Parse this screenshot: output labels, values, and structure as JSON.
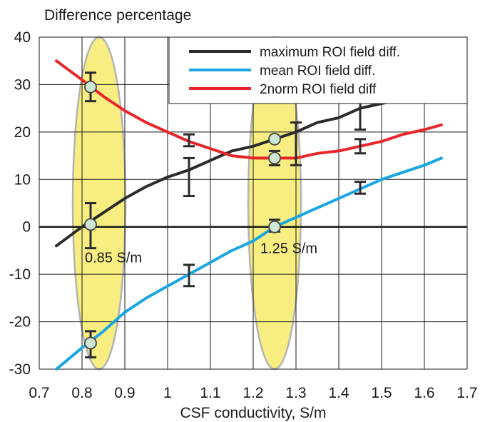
{
  "chart_data": {
    "type": "line",
    "title": "",
    "ylabel": "Difference percentage",
    "xlabel": "CSF conductivity, S/m",
    "xlim": [
      0.7,
      1.7
    ],
    "ylim": [
      -30,
      40
    ],
    "x_ticks": [
      "0.7",
      "0.8",
      "0.9",
      "1",
      "1.1",
      "1.2",
      "1.3",
      "1.4",
      "1.5",
      "1.6",
      "1.7"
    ],
    "y_ticks": [
      "40",
      "30",
      "20",
      "10",
      "0",
      "-10",
      "-20",
      "-30"
    ],
    "grid": true,
    "legend_position": "top-right",
    "series": [
      {
        "name": "maximum ROI field diff.",
        "color": "#2b2b2b",
        "x": [
          0.74,
          0.8,
          0.85,
          0.9,
          0.95,
          1.0,
          1.05,
          1.1,
          1.15,
          1.2,
          1.25,
          1.3,
          1.35,
          1.4,
          1.45,
          1.5,
          1.55,
          1.6,
          1.64
        ],
        "y": [
          -4,
          0,
          3,
          6,
          8.5,
          10.5,
          12,
          14,
          16,
          17,
          18.5,
          20,
          22,
          23,
          25,
          26,
          27,
          28.5,
          29.5
        ]
      },
      {
        "name": "mean ROI field diff.",
        "color": "#1aa6e0",
        "x": [
          0.74,
          0.8,
          0.85,
          0.9,
          0.95,
          1.0,
          1.05,
          1.1,
          1.15,
          1.2,
          1.25,
          1.3,
          1.35,
          1.4,
          1.45,
          1.5,
          1.55,
          1.6,
          1.64
        ],
        "y": [
          -30,
          -25.5,
          -22,
          -18,
          -15,
          -12.5,
          -10,
          -7.5,
          -5,
          -3,
          0,
          2,
          4,
          6,
          8,
          10,
          11.5,
          13,
          14.5
        ]
      },
      {
        "name": "2norm ROI field diff",
        "color": "#e8262a",
        "x": [
          0.74,
          0.8,
          0.85,
          0.9,
          0.95,
          1.0,
          1.05,
          1.1,
          1.15,
          1.2,
          1.25,
          1.3,
          1.35,
          1.4,
          1.45,
          1.5,
          1.55,
          1.6,
          1.64
        ],
        "y": [
          35,
          31,
          27.5,
          24.5,
          22,
          20,
          18,
          16.5,
          15,
          14.5,
          14.5,
          14.5,
          15.5,
          16,
          17,
          18,
          19.5,
          20.5,
          21.5
        ]
      }
    ],
    "error_bars": [
      {
        "x": 0.82,
        "y": 29.5,
        "low": 26.5,
        "high": 32.5
      },
      {
        "x": 0.82,
        "y": 0.5,
        "low": -4.5,
        "high": 5
      },
      {
        "x": 0.82,
        "y": -24.5,
        "low": -27.5,
        "high": -22
      },
      {
        "x": 1.05,
        "y": 18,
        "low": 17,
        "high": 19.5
      },
      {
        "x": 1.05,
        "y": 10.5,
        "low": 6.5,
        "high": 14.5
      },
      {
        "x": 1.05,
        "y": -10,
        "low": -12.5,
        "high": -8
      },
      {
        "x": 1.25,
        "y": 14.5,
        "low": 13,
        "high": 16
      },
      {
        "x": 1.25,
        "y": 0,
        "low": -1,
        "high": 1.5
      },
      {
        "x": 1.3,
        "y": 17.5,
        "low": 13,
        "high": 22
      },
      {
        "x": 1.45,
        "y": 17,
        "low": 15.5,
        "high": 18.5
      },
      {
        "x": 1.45,
        "y": 24,
        "low": 20.5,
        "high": 27.5
      },
      {
        "x": 1.45,
        "y": 8,
        "low": 7,
        "high": 9.5
      }
    ],
    "markers": [
      {
        "x": 0.82,
        "y": 29.5
      },
      {
        "x": 0.82,
        "y": 0.5
      },
      {
        "x": 0.82,
        "y": -24.5
      },
      {
        "x": 1.25,
        "y": 18.5
      },
      {
        "x": 1.25,
        "y": 14.5
      },
      {
        "x": 1.25,
        "y": 0
      }
    ],
    "highlight_regions": [
      {
        "label": "0.85 S/m",
        "x": 0.84,
        "ymin": -30,
        "ymax": 40
      },
      {
        "label": "1.25 S/m",
        "x": 1.25,
        "ymin": -30,
        "ymax": 40
      }
    ],
    "colors": {
      "highlight_fill": "#f7ea6a",
      "highlight_stroke": "#b3b3b3",
      "marker_fill": "#cde7d4",
      "axis": "#1a1a1a",
      "grid": "#1a1a1a"
    }
  }
}
